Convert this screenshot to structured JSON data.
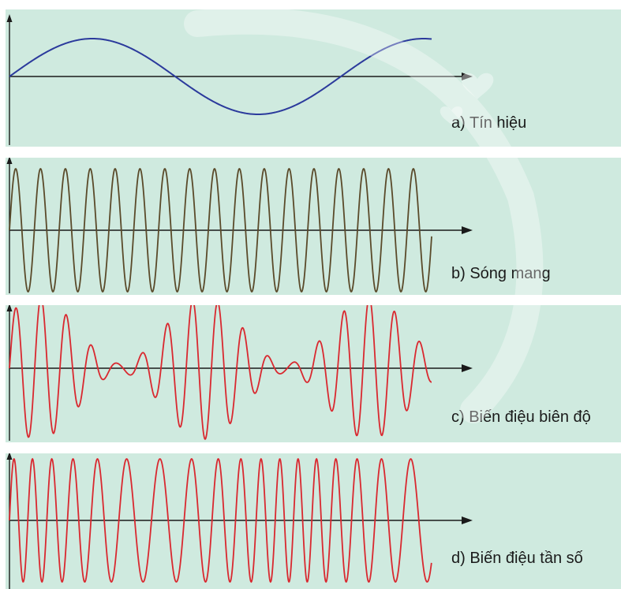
{
  "colors": {
    "panel_bg": "#cfeadf",
    "axis": "#1a1a1a",
    "signal": "#2b3a9c",
    "carrier": "#5a4a2a",
    "modulated": "#d9282f",
    "watermark": "#ffffff"
  },
  "panels": [
    {
      "id": "a",
      "label": "a) Tín hiệu",
      "wave": "signal"
    },
    {
      "id": "b",
      "label": "b) Sóng mang",
      "wave": "carrier"
    },
    {
      "id": "c",
      "label": "c) Biến điệu biên độ",
      "wave": "amplitude-modulated"
    },
    {
      "id": "d",
      "label": "d) Biến điệu tần số",
      "wave": "frequency-modulated"
    }
  ]
}
